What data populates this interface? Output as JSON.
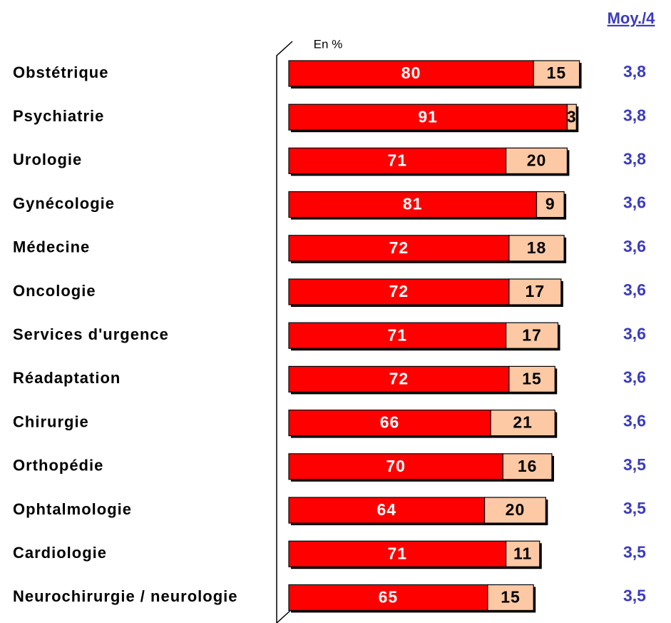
{
  "chart_data": {
    "type": "stacked-bar-horizontal",
    "unit_label": "En %",
    "average_header": "Moy./4",
    "categories": [
      "Obstétrique",
      "Psychiatrie",
      "Urologie",
      "Gynécologie",
      "Médecine",
      "Oncologie",
      "Services d'urgence",
      "Réadaptation",
      "Chirurgie",
      "Orthopédie",
      "Ophtalmologie",
      "Cardiologie",
      "Neurochirurgie / neurologie"
    ],
    "series": [
      {
        "color": "#ff0000",
        "values": [
          80,
          91,
          71,
          81,
          72,
          72,
          71,
          72,
          66,
          70,
          64,
          71,
          65
        ]
      },
      {
        "color": "#fcc9a4",
        "values": [
          15,
          3,
          20,
          9,
          18,
          17,
          17,
          15,
          21,
          16,
          20,
          11,
          15
        ]
      }
    ],
    "averages": [
      "3,8",
      "3,8",
      "3,8",
      "3,6",
      "3,6",
      "3,6",
      "3,6",
      "3,6",
      "3,6",
      "3,5",
      "3,5",
      "3,5",
      "3,5"
    ],
    "average_color": "#3b3bbf",
    "xlim": [
      0,
      100
    ]
  }
}
